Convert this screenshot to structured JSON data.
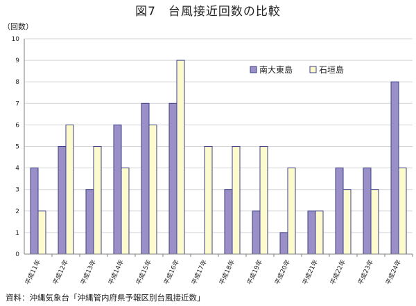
{
  "title": "図7　台風接近回数の比較",
  "unit": "（回数）",
  "source": "資料：沖縄気象台「沖縄管内府県予報区別台風接近数」",
  "colors": {
    "series1": "#9b8fc8",
    "series2": "#fdfbce",
    "stroke": "#3a3f86",
    "grid": "#d4d4d4",
    "axis": "#808080"
  },
  "chart_data": {
    "type": "bar",
    "categories": [
      "平成11年",
      "平成12年",
      "平成13年",
      "平成14年",
      "平成15年",
      "平成16年",
      "平成17年",
      "平成18年",
      "平成19年",
      "平成20年",
      "平成21年",
      "平成22年",
      "平成23年",
      "平成24年"
    ],
    "series": [
      {
        "name": "南大東島",
        "values": [
          4,
          5,
          3,
          6,
          7,
          7,
          0,
          3,
          2,
          1,
          2,
          4,
          4,
          8
        ]
      },
      {
        "name": "石垣島",
        "values": [
          2,
          6,
          5,
          4,
          6,
          9,
          5,
          5,
          5,
          4,
          2,
          3,
          3,
          4
        ]
      }
    ],
    "ylim": [
      0,
      10
    ],
    "yticks": [
      0,
      1,
      2,
      3,
      4,
      5,
      6,
      7,
      8,
      9,
      10
    ],
    "grid": true,
    "legend": "top-right"
  }
}
